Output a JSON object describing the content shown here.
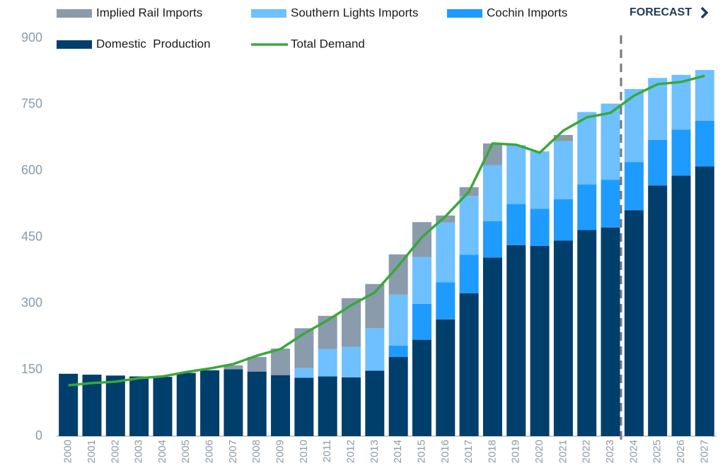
{
  "chart_data": {
    "type": "bar",
    "stacked": true,
    "annotation": "FORECAST",
    "categories": [
      "2000",
      "2001",
      "2002",
      "2003",
      "2004",
      "2005",
      "2006",
      "2007",
      "2008",
      "2009",
      "2010",
      "2011",
      "2012",
      "2013",
      "2014",
      "2015",
      "2016",
      "2017",
      "2018",
      "2019",
      "2020",
      "2021",
      "2022",
      "2023",
      "2024",
      "2025",
      "2026",
      "2027"
    ],
    "series": [
      {
        "name": "Domestic  Production",
        "color": "#003e6b",
        "values": [
          141,
          139,
          137,
          135,
          134,
          143,
          149,
          151,
          146,
          138,
          132,
          135,
          133,
          148,
          179,
          218,
          264,
          323,
          404,
          432,
          430,
          442,
          466,
          472,
          511,
          567,
          589,
          610
        ]
      },
      {
        "name": "Cochin Imports",
        "color": "#1e9bff",
        "values": [
          0,
          0,
          0,
          0,
          0,
          0,
          0,
          0,
          0,
          0,
          0,
          0,
          0,
          0,
          26,
          81,
          84,
          87,
          82,
          93,
          84,
          94,
          103,
          108,
          109,
          103,
          104,
          103
        ]
      },
      {
        "name": "Southern Lights Imports",
        "color": "#6ec0ff",
        "values": [
          0,
          0,
          0,
          0,
          0,
          0,
          0,
          0,
          0,
          0,
          22,
          62,
          69,
          96,
          115,
          106,
          135,
          133,
          127,
          133,
          130,
          131,
          164,
          172,
          165,
          140,
          124,
          115
        ]
      },
      {
        "name": "Implied Rail Imports",
        "color": "#8a9bab",
        "values": [
          0,
          0,
          0,
          0,
          0,
          0,
          0,
          9,
          33,
          60,
          90,
          75,
          110,
          100,
          91,
          79,
          16,
          20,
          49,
          0,
          0,
          14,
          0,
          0,
          0,
          0,
          0,
          0
        ]
      },
      {
        "name": "Total Demand",
        "color": "#3aa83a",
        "type": "line",
        "values": [
          115,
          120,
          123,
          131,
          135,
          145,
          153,
          163,
          182,
          197,
          232,
          262,
          296,
          325,
          385,
          450,
          497,
          553,
          662,
          659,
          641,
          691,
          721,
          731,
          770,
          796,
          801,
          815
        ]
      }
    ],
    "ylim": [
      0,
      900
    ],
    "yticks": [
      0,
      150,
      300,
      450,
      600,
      750,
      900
    ],
    "grid": false
  }
}
